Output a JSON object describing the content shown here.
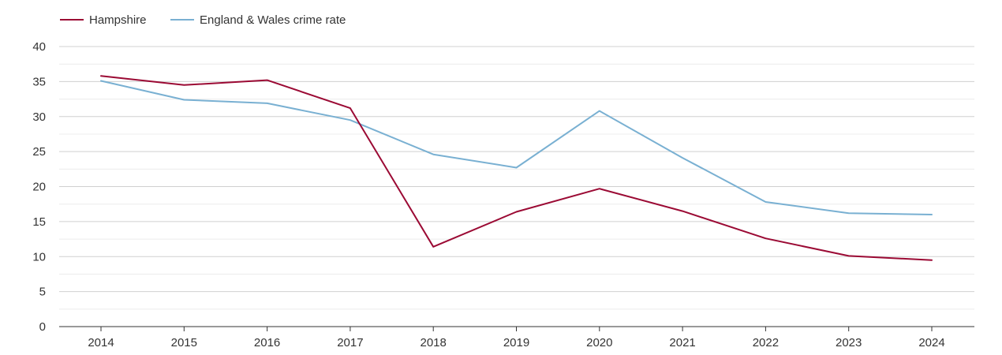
{
  "chart_data": {
    "type": "line",
    "title": "",
    "xlabel": "",
    "ylabel": "",
    "ylim": [
      0,
      40
    ],
    "yticks": [
      0,
      5,
      10,
      15,
      20,
      25,
      30,
      35,
      40
    ],
    "grid": true,
    "legend_position": "top-left",
    "categories": [
      "2014",
      "2015",
      "2016",
      "2017",
      "2018",
      "2019",
      "2020",
      "2021",
      "2022",
      "2023",
      "2024"
    ],
    "series": [
      {
        "name": "Hampshire",
        "color": "#9b0a34",
        "values": [
          35.8,
          34.5,
          35.2,
          31.2,
          11.4,
          16.4,
          19.7,
          16.5,
          12.6,
          10.1,
          9.5
        ]
      },
      {
        "name": "England & Wales crime rate",
        "color": "#79b0d2",
        "values": [
          35.1,
          32.4,
          31.9,
          29.5,
          24.6,
          22.7,
          30.8,
          24.1,
          17.8,
          16.2,
          16.0
        ]
      }
    ]
  }
}
